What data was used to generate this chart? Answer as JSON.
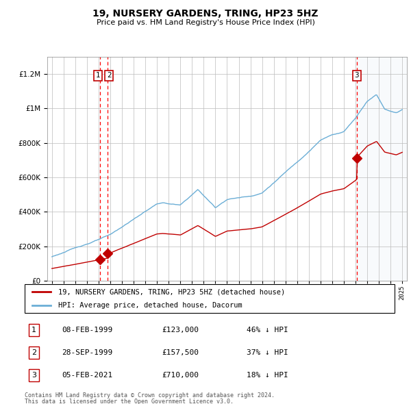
{
  "title": "19, NURSERY GARDENS, TRING, HP23 5HZ",
  "subtitle": "Price paid vs. HM Land Registry's House Price Index (HPI)",
  "legend_line1": "19, NURSERY GARDENS, TRING, HP23 5HZ (detached house)",
  "legend_line2": "HPI: Average price, detached house, Dacorum",
  "footer1": "Contains HM Land Registry data © Crown copyright and database right 2024.",
  "footer2": "This data is licensed under the Open Government Licence v3.0.",
  "transactions": [
    {
      "num": "1",
      "date": "08-FEB-1999",
      "price": "£123,000",
      "pct": "46% ↓ HPI",
      "year": 1999.1,
      "value": 123000
    },
    {
      "num": "2",
      "date": "28-SEP-1999",
      "price": "£157,500",
      "pct": "37% ↓ HPI",
      "year": 1999.75,
      "value": 157500
    },
    {
      "num": "3",
      "date": "05-FEB-2021",
      "price": "£710,000",
      "pct": "18% ↓ HPI",
      "year": 2021.1,
      "value": 710000
    }
  ],
  "hpi_color": "#6baed6",
  "price_color": "#c00000",
  "label_box_color": "#c00000",
  "dashed_line_color": "#ff0000",
  "background_shade": "#dce6f1",
  "ylim": [
    0,
    1300000
  ],
  "xlim_start": 1994.6,
  "xlim_end": 2025.4,
  "hpi_start_year": 1995,
  "hpi_end_year": 2025
}
